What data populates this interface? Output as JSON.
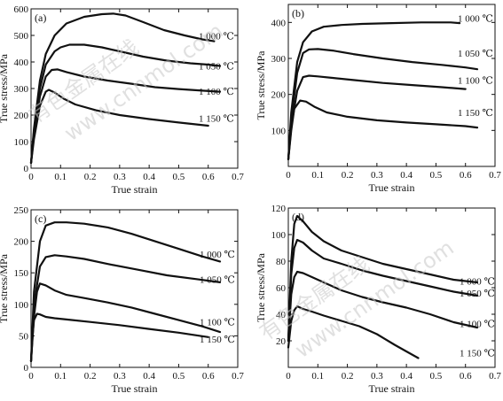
{
  "watermark": [
    "有色金属在线",
    "www.cnnmol.com"
  ],
  "chart_data": [
    {
      "type": "line",
      "panel_label": "(a)",
      "xlabel": "True strain",
      "ylabel": "True stress/MPa",
      "xlim": [
        0,
        0.7
      ],
      "ylim": [
        0,
        600
      ],
      "xticks": [
        0,
        0.1,
        0.2,
        0.3,
        0.4,
        0.5,
        0.6,
        0.7
      ],
      "yticks": [
        0,
        100,
        200,
        300,
        400,
        500,
        600
      ],
      "xtick_labels": [
        "0",
        "0.1",
        "0.2",
        "0.3",
        "0.4",
        "0.5",
        "0.6",
        "0.7"
      ],
      "ytick_labels": [
        "0",
        "100",
        "200",
        "300",
        "400",
        "500",
        "600"
      ],
      "grid": false,
      "series": [
        {
          "name": "1 000 ℃",
          "x": [
            0,
            0.01,
            0.03,
            0.05,
            0.08,
            0.12,
            0.18,
            0.24,
            0.28,
            0.32,
            0.38,
            0.45,
            0.52,
            0.58,
            0.62
          ],
          "y": [
            20,
            150,
            330,
            430,
            500,
            545,
            570,
            580,
            582,
            575,
            550,
            520,
            500,
            485,
            478
          ]
        },
        {
          "name": "1 050 ℃",
          "x": [
            0,
            0.01,
            0.03,
            0.05,
            0.08,
            0.1,
            0.13,
            0.18,
            0.24,
            0.3,
            0.38,
            0.46,
            0.54,
            0.6,
            0.64
          ],
          "y": [
            20,
            140,
            300,
            390,
            440,
            455,
            465,
            465,
            455,
            440,
            420,
            405,
            395,
            390,
            385
          ]
        },
        {
          "name": "1 100 ℃",
          "x": [
            0,
            0.01,
            0.03,
            0.05,
            0.07,
            0.09,
            0.12,
            0.18,
            0.26,
            0.34,
            0.42,
            0.5,
            0.58,
            0.64
          ],
          "y": [
            20,
            130,
            270,
            345,
            370,
            372,
            362,
            345,
            330,
            318,
            305,
            298,
            292,
            288
          ]
        },
        {
          "name": "1 150 ℃",
          "x": [
            0,
            0.01,
            0.03,
            0.05,
            0.06,
            0.08,
            0.11,
            0.15,
            0.22,
            0.3,
            0.4,
            0.5,
            0.6
          ],
          "y": [
            20,
            110,
            235,
            288,
            295,
            285,
            262,
            240,
            218,
            200,
            185,
            172,
            160
          ]
        }
      ],
      "label_values": [
        498,
        385,
        290,
        188
      ]
    },
    {
      "type": "line",
      "panel_label": "(b)",
      "xlabel": "True strain",
      "ylabel": "True stress/MPa",
      "xlim": [
        0,
        0.7
      ],
      "ylim": [
        0,
        450
      ],
      "xticks": [
        0,
        0.1,
        0.2,
        0.3,
        0.4,
        0.5,
        0.6,
        0.7
      ],
      "yticks": [
        100,
        200,
        300,
        400
      ],
      "xtick_labels": [
        "0",
        "0.1",
        "0.2",
        "0.3",
        "0.4",
        "0.5",
        "0.6",
        "0.7"
      ],
      "ytick_labels": [
        "100",
        "200",
        "300",
        "400"
      ],
      "grid": false,
      "series": [
        {
          "name": "1 000 ℃",
          "x": [
            0,
            0.01,
            0.03,
            0.05,
            0.08,
            0.12,
            0.18,
            0.25,
            0.35,
            0.45,
            0.55,
            0.58
          ],
          "y": [
            20,
            150,
            290,
            345,
            375,
            388,
            393,
            396,
            398,
            400,
            400,
            398
          ]
        },
        {
          "name": "1 050 ℃",
          "x": [
            0,
            0.01,
            0.03,
            0.05,
            0.07,
            0.1,
            0.15,
            0.22,
            0.32,
            0.42,
            0.52,
            0.6,
            0.64
          ],
          "y": [
            20,
            130,
            260,
            315,
            325,
            326,
            322,
            312,
            300,
            290,
            282,
            275,
            270
          ]
        },
        {
          "name": "1 100 ℃",
          "x": [
            0,
            0.01,
            0.03,
            0.05,
            0.07,
            0.1,
            0.15,
            0.22,
            0.32,
            0.42,
            0.52,
            0.6
          ],
          "y": [
            20,
            110,
            210,
            248,
            252,
            250,
            246,
            240,
            232,
            226,
            220,
            215
          ]
        },
        {
          "name": "1 150 ℃",
          "x": [
            0,
            0.01,
            0.02,
            0.04,
            0.06,
            0.09,
            0.13,
            0.2,
            0.3,
            0.4,
            0.5,
            0.6,
            0.64
          ],
          "y": [
            20,
            100,
            160,
            183,
            180,
            165,
            150,
            138,
            128,
            122,
            117,
            112,
            108
          ]
        }
      ],
      "label_values": [
        412,
        315,
        240,
        150
      ]
    },
    {
      "type": "line",
      "panel_label": "(c)",
      "xlabel": "True strain",
      "ylabel": "True stress/MPa",
      "xlim": [
        0,
        0.7
      ],
      "ylim": [
        0,
        250
      ],
      "xticks": [
        0,
        0.1,
        0.2,
        0.3,
        0.4,
        0.5,
        0.6,
        0.7
      ],
      "yticks": [
        0,
        50,
        100,
        150,
        200,
        250
      ],
      "xtick_labels": [
        "0",
        "0.1",
        "0.2",
        "0.3",
        "0.4",
        "0.5",
        "0.6",
        "0.7"
      ],
      "ytick_labels": [
        "0",
        "50",
        "100",
        "150",
        "200",
        "250"
      ],
      "grid": false,
      "series": [
        {
          "name": "1 000 ℃",
          "x": [
            0,
            0.01,
            0.03,
            0.05,
            0.08,
            0.12,
            0.18,
            0.26,
            0.34,
            0.42,
            0.5,
            0.58,
            0.64
          ],
          "y": [
            10,
            120,
            200,
            225,
            230,
            230,
            228,
            222,
            212,
            200,
            188,
            176,
            168
          ]
        },
        {
          "name": "1 050 ℃",
          "x": [
            0,
            0.01,
            0.03,
            0.05,
            0.08,
            0.12,
            0.18,
            0.26,
            0.36,
            0.46,
            0.56,
            0.64
          ],
          "y": [
            10,
            100,
            160,
            175,
            178,
            176,
            172,
            164,
            155,
            146,
            140,
            135
          ]
        },
        {
          "name": "1 100 ℃",
          "x": [
            0,
            0.01,
            0.02,
            0.03,
            0.05,
            0.08,
            0.12,
            0.18,
            0.26,
            0.34,
            0.42,
            0.5,
            0.58,
            0.64
          ],
          "y": [
            10,
            80,
            120,
            133,
            130,
            122,
            115,
            110,
            103,
            95,
            85,
            75,
            65,
            56
          ]
        },
        {
          "name": "1 150 ℃",
          "x": [
            0,
            0.005,
            0.01,
            0.02,
            0.03,
            0.05,
            0.08,
            0.12,
            0.2,
            0.3,
            0.4,
            0.5,
            0.6
          ],
          "y": [
            10,
            50,
            75,
            85,
            84,
            80,
            78,
            76,
            72,
            67,
            61,
            55,
            48
          ]
        }
      ],
      "label_values": [
        180,
        140,
        72,
        45
      ]
    },
    {
      "type": "line",
      "panel_label": "(d)",
      "xlabel": "True strain",
      "ylabel": "True stress/MPa",
      "xlim": [
        0,
        0.7
      ],
      "ylim": [
        0,
        120
      ],
      "xticks": [
        0,
        0.1,
        0.2,
        0.3,
        0.4,
        0.5,
        0.6,
        0.7
      ],
      "yticks": [
        20,
        40,
        60,
        80,
        100,
        120
      ],
      "xtick_labels": [
        "0",
        "0.1",
        "0.2",
        "0.3",
        "0.4",
        "0.5",
        "0.6",
        "0.7"
      ],
      "ytick_labels": [
        "20",
        "40",
        "60",
        "80",
        "100",
        "120"
      ],
      "grid": false,
      "series": [
        {
          "name": "1 000 ℃",
          "x": [
            0,
            0.01,
            0.02,
            0.03,
            0.05,
            0.08,
            0.12,
            0.18,
            0.25,
            0.32,
            0.4,
            0.48,
            0.56,
            0.64
          ],
          "y": [
            20,
            80,
            108,
            114,
            110,
            102,
            95,
            88,
            83,
            78,
            74,
            70,
            66,
            64
          ]
        },
        {
          "name": "1 050 ℃",
          "x": [
            0,
            0.01,
            0.02,
            0.03,
            0.05,
            0.08,
            0.12,
            0.18,
            0.25,
            0.32,
            0.4,
            0.48,
            0.56,
            0.64
          ],
          "y": [
            20,
            70,
            90,
            96,
            94,
            88,
            82,
            78,
            73,
            69,
            65,
            61,
            57,
            54
          ]
        },
        {
          "name": "1 100 ℃",
          "x": [
            0,
            0.01,
            0.02,
            0.03,
            0.05,
            0.08,
            0.12,
            0.18,
            0.25,
            0.32,
            0.4,
            0.48,
            0.56,
            0.64
          ],
          "y": [
            20,
            55,
            68,
            72,
            71,
            68,
            64,
            58,
            53,
            49,
            45,
            40,
            34,
            30
          ]
        },
        {
          "name": "1 150 ℃",
          "x": [
            0,
            0.01,
            0.02,
            0.03,
            0.05,
            0.08,
            0.12,
            0.18,
            0.24,
            0.3,
            0.36,
            0.4,
            0.44
          ],
          "y": [
            15,
            35,
            43,
            46,
            44,
            42,
            39,
            35,
            31,
            25,
            17,
            12,
            7
          ]
        }
      ],
      "label_values": [
        65,
        56,
        33,
        11
      ]
    }
  ]
}
